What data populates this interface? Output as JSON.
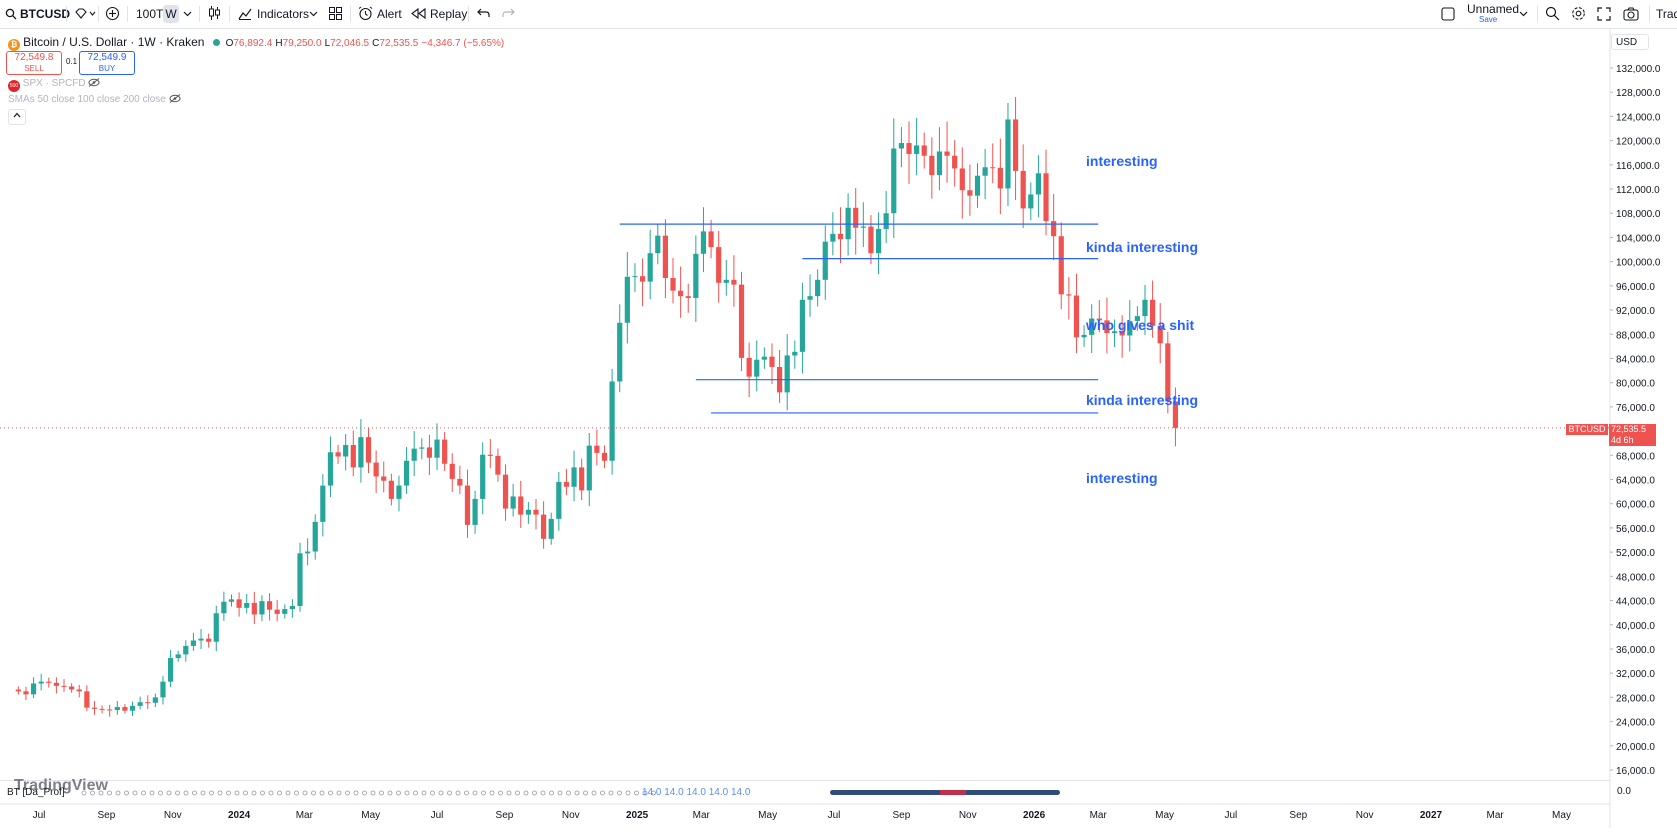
{
  "toolbar": {
    "symbol": "BTCUSD",
    "count": "100T",
    "interval": "W",
    "indicators_label": "Indicators",
    "alert_label": "Alert",
    "replay_label": "Replay",
    "layout_name": "Unnamed",
    "layout_save": "Save",
    "trade_label": "Trad"
  },
  "legend": {
    "title": "Bitcoin / U.S. Dollar · 1W · Kraken",
    "o_label": "O",
    "o_value": "76,892.4",
    "h_label": "H",
    "h_value": "79,250.0",
    "l_label": "L",
    "l_value": "72,046.5",
    "c_label": "C",
    "c_value": "72,535.5",
    "change": "−4,346.7 (−5.65%)",
    "sell_price": "72,549.8",
    "sell_label": "SELL",
    "spread": "0.1",
    "buy_price": "72,549.9",
    "buy_label": "BUY",
    "spx_badge": "500",
    "spx_label": "SPX · SPCFD",
    "sma_label": "SMAs 50 close 100 close 200 close"
  },
  "axis": {
    "currency": "USD",
    "price_tag_symbol": "BTCUSD",
    "price_tag_value": "72,535.5",
    "price_tag_countdown": "4d 6h",
    "bottom_value": "0.0"
  },
  "bottom": {
    "indicator_label": "BT [Da_Prof]",
    "values_text": "14.0 14.0 14.0 14.0 14.0",
    "watermark": "TradingView"
  },
  "annotations": [
    {
      "text": "interesting",
      "price": 116500
    },
    {
      "text": "kinda interesting",
      "price": 102300
    },
    {
      "text": "who gives a shit",
      "price": 89300
    },
    {
      "text": "kinda interesting",
      "price": 76900
    },
    {
      "text": "interesting",
      "price": 64100
    }
  ],
  "colors": {
    "up": "#26a69a",
    "down": "#ef5350",
    "line": "#2962ff",
    "text": "#131722",
    "muted": "#787b86"
  },
  "chart_data": {
    "type": "candlestick",
    "symbol": "Bitcoin / U.S. Dollar",
    "timeframe": "1W",
    "exchange": "Kraken",
    "ylim": [
      14000,
      134000
    ],
    "price_ticks": [
      132000,
      128000,
      124000,
      120000,
      116000,
      112000,
      108000,
      104000,
      100000,
      96000,
      92000,
      88000,
      84000,
      80000,
      76000,
      72000,
      68000,
      64000,
      60000,
      56000,
      52000,
      48000,
      44000,
      40000,
      36000,
      32000,
      28000,
      24000,
      20000,
      16000
    ],
    "time_ticks": [
      {
        "label": "Jul",
        "date": "2023-07-01"
      },
      {
        "label": "Sep",
        "date": "2023-09-01"
      },
      {
        "label": "Nov",
        "date": "2023-11-01"
      },
      {
        "label": "2024",
        "date": "2024-01-01"
      },
      {
        "label": "Mar",
        "date": "2024-03-01"
      },
      {
        "label": "May",
        "date": "2024-05-01"
      },
      {
        "label": "Jul",
        "date": "2024-07-01"
      },
      {
        "label": "Sep",
        "date": "2024-09-01"
      },
      {
        "label": "Nov",
        "date": "2024-11-01"
      },
      {
        "label": "2025",
        "date": "2025-01-01"
      },
      {
        "label": "Mar",
        "date": "2025-03-01"
      },
      {
        "label": "May",
        "date": "2025-05-01"
      },
      {
        "label": "Jul",
        "date": "2025-07-01"
      },
      {
        "label": "Sep",
        "date": "2025-09-01"
      },
      {
        "label": "Nov",
        "date": "2025-11-01"
      },
      {
        "label": "2026",
        "date": "2026-01-01"
      },
      {
        "label": "Mar",
        "date": "2026-03-01"
      },
      {
        "label": "May",
        "date": "2026-05-01"
      },
      {
        "label": "Jul",
        "date": "2026-07-01"
      },
      {
        "label": "Sep",
        "date": "2026-09-01"
      },
      {
        "label": "Nov",
        "date": "2026-11-01"
      },
      {
        "label": "2027",
        "date": "2027-01-01"
      },
      {
        "label": "Mar",
        "date": "2027-03-01"
      },
      {
        "label": "May",
        "date": "2027-05-01"
      }
    ],
    "last_price": 72535.5,
    "closes": [
      29000,
      28500,
      30300,
      30600,
      30400,
      29900,
      29800,
      29300,
      29000,
      26300,
      26100,
      26000,
      25900,
      26400,
      25800,
      26600,
      27200,
      27100,
      28000,
      30600,
      34500,
      35100,
      36500,
      37400,
      37700,
      37200,
      41900,
      43800,
      44200,
      42800,
      43600,
      41700,
      43900,
      42500,
      41800,
      42600,
      43100,
      51800,
      52100,
      57000,
      63000,
      68500,
      67800,
      69700,
      66000,
      71000,
      66800,
      64500,
      63800,
      60800,
      63000,
      67100,
      69100,
      69300,
      67600,
      70600,
      66600,
      64100,
      63000,
      56500,
      60800,
      68100,
      67900,
      64800,
      59200,
      61200,
      58200,
      59000,
      58200,
      54200,
      57500,
      63600,
      62800,
      66000,
      62200,
      69600,
      68400,
      67100,
      80200,
      89900,
      97500,
      97600,
      96700,
      101400,
      104300,
      97300,
      95200,
      94300,
      94000,
      101300,
      105000,
      102400,
      96500,
      97000,
      96200,
      84100,
      81000,
      83800,
      84300,
      82600,
      78400,
      84500,
      85100,
      93700,
      94300,
      97000,
      103300,
      104600,
      103700,
      108900,
      105600,
      105800,
      101400,
      105400,
      108000,
      118700,
      119600,
      117800,
      119200,
      117500,
      114300,
      118200,
      117500,
      115400,
      111800,
      110900,
      114200,
      115600,
      115500,
      112100,
      123500,
      115000,
      108800,
      111100,
      114600,
      106700,
      104200,
      94600,
      94400,
      87500,
      87900,
      90600,
      90300,
      88200,
      88500,
      87800,
      90200,
      91000,
      93700,
      89400,
      86500,
      76900,
      72535.5
    ]
  }
}
